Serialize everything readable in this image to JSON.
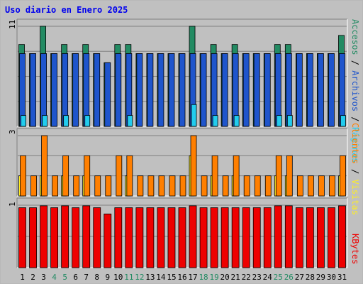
{
  "title": "Uso diario en Enero 2025",
  "panels": {
    "top": {
      "max_label": "11",
      "legend": [
        {
          "text": "Accesos",
          "color": "#238b63"
        },
        {
          "text": " / ",
          "color": "#000000"
        },
        {
          "text": "Archivos",
          "color": "#1f55cc"
        },
        {
          "text": " / ",
          "color": "#000000"
        },
        {
          "text": "Páginas",
          "color": "#22ccee"
        }
      ]
    },
    "middle": {
      "max_label": "3",
      "legend": [
        {
          "text": "Clientes",
          "color": "#ff7f00"
        },
        {
          "text": " / ",
          "color": "#000000"
        },
        {
          "text": "Visitas",
          "color": "#ffee22"
        }
      ]
    },
    "bottom": {
      "max_label": "1",
      "legend": [
        {
          "text": "KBytes",
          "color": "#ee0000"
        }
      ]
    }
  },
  "chart_data": {
    "type": "bar",
    "categories": [
      "1",
      "2",
      "3",
      "4",
      "5",
      "6",
      "7",
      "8",
      "9",
      "10",
      "11",
      "12",
      "13",
      "14",
      "15",
      "16",
      "17",
      "18",
      "19",
      "20",
      "21",
      "22",
      "23",
      "24",
      "25",
      "26",
      "27",
      "28",
      "29",
      "30",
      "31"
    ],
    "weekend_days": [
      "4",
      "5",
      "11",
      "12",
      "18",
      "19",
      "25",
      "26"
    ],
    "colors": {
      "axis_normal": "#000000",
      "axis_weekend": "#238b63",
      "accesos": "#238b63",
      "archivos": "#1f55cc",
      "paginas": "#22ccee",
      "clientes": "#ff7f00",
      "visitas": "#ffee22",
      "kbytes": "#ee0000"
    },
    "series": [
      {
        "name": "Accesos",
        "panel": "top",
        "ylim": [
          0,
          11
        ],
        "values": [
          9,
          8,
          11,
          8,
          9,
          8,
          9,
          8,
          7,
          9,
          9,
          8,
          8,
          8,
          8,
          8,
          11,
          8,
          9,
          8,
          9,
          8,
          8,
          8,
          9,
          9,
          8,
          8,
          8,
          8,
          10
        ]
      },
      {
        "name": "Archivos",
        "panel": "top",
        "ylim": [
          0,
          11
        ],
        "values": [
          8,
          8,
          8,
          8,
          8,
          8,
          8,
          8,
          7,
          8,
          8,
          8,
          8,
          8,
          8,
          8,
          8,
          8,
          8,
          8,
          8,
          8,
          8,
          8,
          8,
          8,
          8,
          8,
          8,
          8,
          8
        ]
      },
      {
        "name": "Páginas",
        "panel": "top",
        "ylim": [
          0,
          11
        ],
        "values": [
          1,
          0,
          1,
          0,
          1,
          0,
          1,
          0,
          0,
          0,
          1,
          0,
          0,
          0,
          0,
          0,
          2,
          0,
          1,
          0,
          1,
          0,
          0,
          0,
          1,
          1,
          0,
          0,
          0,
          0,
          1
        ]
      },
      {
        "name": "Clientes",
        "panel": "middle",
        "ylim": [
          0,
          3
        ],
        "values": [
          2,
          1,
          3,
          1,
          2,
          1,
          2,
          1,
          1,
          2,
          2,
          1,
          1,
          1,
          1,
          1,
          3,
          1,
          2,
          1,
          2,
          1,
          1,
          1,
          2,
          2,
          1,
          1,
          1,
          1,
          2
        ]
      },
      {
        "name": "Visitas",
        "panel": "middle",
        "ylim": [
          0,
          3
        ],
        "values": [
          1,
          0,
          1,
          0,
          1,
          0,
          1,
          0,
          0,
          0,
          1,
          0,
          0,
          0,
          0,
          0,
          2,
          0,
          1,
          0,
          1,
          0,
          0,
          0,
          1,
          1,
          0,
          0,
          0,
          0,
          1
        ]
      },
      {
        "name": "KBytes",
        "panel": "bottom",
        "ylim": [
          0,
          1
        ],
        "values": [
          0.96,
          0.96,
          0.99,
          0.96,
          0.99,
          0.96,
          0.99,
          0.96,
          0.86,
          0.96,
          0.96,
          0.96,
          0.96,
          0.96,
          0.96,
          0.96,
          0.99,
          0.96,
          0.96,
          0.96,
          0.96,
          0.96,
          0.96,
          0.96,
          0.99,
          0.99,
          0.96,
          0.96,
          0.96,
          0.96,
          0.99
        ]
      }
    ]
  }
}
